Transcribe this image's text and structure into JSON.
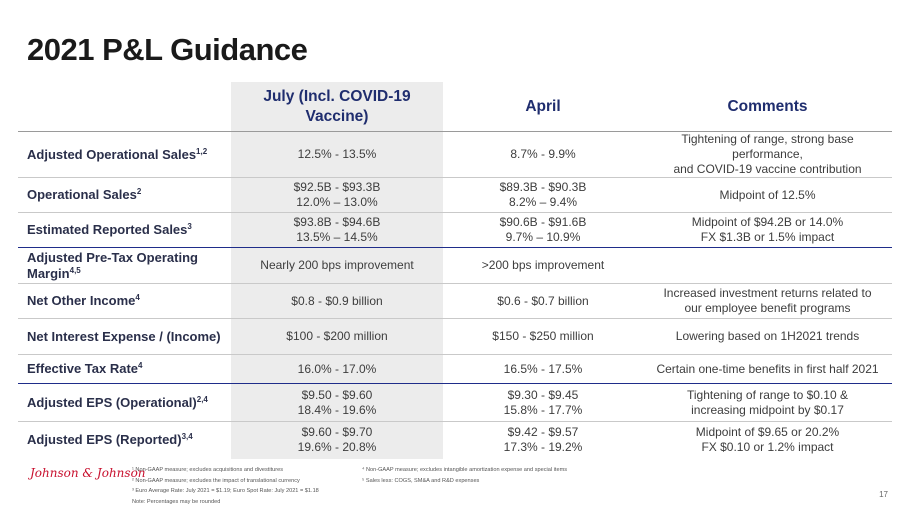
{
  "title": "2021 P&L Guidance",
  "table": {
    "headers": [
      "",
      "July (Incl. COVID-19 Vaccine)",
      "April",
      "Comments"
    ],
    "rows": [
      {
        "label": "Adjusted Operational Sales",
        "sup": "1,2",
        "july": [
          "12.5% - 13.5%"
        ],
        "april": [
          "8.7% - 9.9%"
        ],
        "comments": [
          "Tightening of range, strong base performance,",
          "and COVID-19 vaccine contribution"
        ]
      },
      {
        "label": "Operational Sales",
        "sup": "2",
        "july": [
          "$92.5B - $93.3B",
          "12.0% – 13.0%"
        ],
        "april": [
          "$89.3B - $90.3B",
          "8.2% – 9.4%"
        ],
        "comments": [
          "Midpoint of 12.5%"
        ]
      },
      {
        "label": "Estimated Reported Sales",
        "sup": "3",
        "july": [
          "$93.8B - $94.6B",
          "13.5% – 14.5%"
        ],
        "april": [
          "$90.6B - $91.6B",
          "9.7% – 10.9%"
        ],
        "comments": [
          "Midpoint of $94.2B or 14.0%",
          "FX $1.3B or 1.5% impact"
        ]
      },
      {
        "label": "Adjusted Pre-Tax Operating Margin",
        "sup": "4,5",
        "july": [
          "Nearly 200 bps improvement"
        ],
        "april": [
          ">200 bps improvement"
        ],
        "comments": [
          ""
        ]
      },
      {
        "label": "Net Other Income",
        "sup": "4",
        "july": [
          "$0.8 - $0.9 billion"
        ],
        "april": [
          "$0.6 - $0.7 billion"
        ],
        "comments": [
          "Increased investment returns related to",
          "our employee benefit programs"
        ]
      },
      {
        "label": "Net Interest Expense / (Income)",
        "sup": "",
        "july": [
          "$100 - $200 million"
        ],
        "april": [
          "$150 - $250 million"
        ],
        "comments": [
          "Lowering based on 1H2021 trends"
        ]
      },
      {
        "label": "Effective Tax Rate",
        "sup": "4",
        "july": [
          "16.0% - 17.0%"
        ],
        "april": [
          "16.5% - 17.5%"
        ],
        "comments": [
          "Certain one-time benefits in first half 2021"
        ]
      },
      {
        "label": "Adjusted EPS (Operational)",
        "sup": "2,4",
        "july": [
          "$9.50 - $9.60",
          "18.4% - 19.6%"
        ],
        "april": [
          "$9.30 - $9.45",
          "15.8% - 17.7%"
        ],
        "comments": [
          "Tightening of range to $0.10 &",
          "increasing midpoint by $0.17"
        ]
      },
      {
        "label": "Adjusted EPS (Reported)",
        "sup": "3,4",
        "july": [
          "$9.60 - $9.70",
          "19.6% - 20.8%"
        ],
        "april": [
          "$9.42 - $9.57",
          "17.3% - 19.2%"
        ],
        "comments": [
          "Midpoint of $9.65 or 20.2%",
          "FX $0.10 or 1.2% impact"
        ]
      }
    ]
  },
  "logo_text": "Johnson & Johnson",
  "footnotes_left": [
    "¹ Non-GAAP measure; excludes acquisitions and divestitures",
    "² Non-GAAP measure; excludes the impact of translational currency",
    "³ Euro Average Rate: July 2021 = $1.19; Euro Spot Rate: July 2021 = $1.18",
    "Note: Percentages may be rounded"
  ],
  "footnotes_right": [
    "⁴ Non-GAAP measure; excludes intangible amortization expense and special items",
    "⁵ Sales less: COGS, SM&A and R&D expenses"
  ],
  "page_number": "17",
  "colors": {
    "header_text": "#1f2d6e",
    "highlight_column": "#ececec",
    "divider_blue": "#1f2d8a",
    "logo_red": "#c8102e"
  }
}
